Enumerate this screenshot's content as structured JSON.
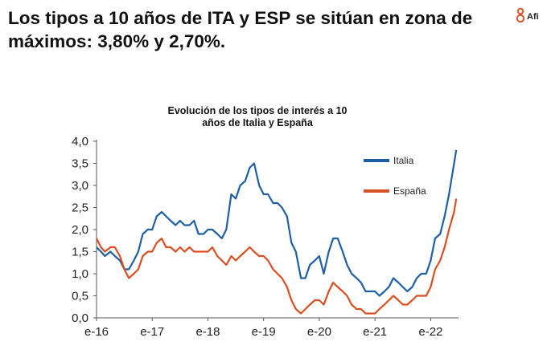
{
  "slide": {
    "title": "Los tipos a 10 años de ITA y ESP se sitúan en zona de máximos: 3,80% y 2,70%.",
    "logo_text": "Afi",
    "logo_color": "#e0542a"
  },
  "chart_data": {
    "type": "line",
    "title": "Evolución de los tipos de interés a 10 años de Italia y España",
    "title_lines": [
      "Evolución de los tipos de interés a 10",
      "años de Italia y España"
    ],
    "xlabel": "",
    "ylabel": "",
    "ylim": [
      0,
      4
    ],
    "yticks": [
      0,
      0.5,
      1,
      1.5,
      2,
      2.5,
      3,
      3.5,
      4
    ],
    "ytick_labels": [
      "0,0",
      "0,5",
      "1,0",
      "1,5",
      "2,0",
      "2,5",
      "3,0",
      "3,5",
      "4,0"
    ],
    "xlim": [
      2016.0,
      2022.5
    ],
    "xticks": [
      2016,
      2017,
      2018,
      2019,
      2020,
      2021,
      2022
    ],
    "xtick_labels": [
      "e-16",
      "e-17",
      "e-18",
      "e-19",
      "e-20",
      "e-21",
      "e-22"
    ],
    "grid": false,
    "legend": "inside top-right",
    "series": [
      {
        "name": "Italia",
        "color": "#1f5fa6",
        "x": [
          2016.0,
          2016.08,
          2016.15,
          2016.25,
          2016.33,
          2016.42,
          2016.5,
          2016.58,
          2016.67,
          2016.75,
          2016.83,
          2016.92,
          2017.0,
          2017.08,
          2017.17,
          2017.25,
          2017.33,
          2017.42,
          2017.5,
          2017.58,
          2017.67,
          2017.75,
          2017.83,
          2017.92,
          2018.0,
          2018.08,
          2018.17,
          2018.25,
          2018.33,
          2018.42,
          2018.5,
          2018.58,
          2018.67,
          2018.75,
          2018.83,
          2018.92,
          2019.0,
          2019.08,
          2019.17,
          2019.25,
          2019.33,
          2019.42,
          2019.5,
          2019.58,
          2019.67,
          2019.75,
          2019.83,
          2019.92,
          2020.0,
          2020.08,
          2020.17,
          2020.25,
          2020.33,
          2020.42,
          2020.5,
          2020.58,
          2020.67,
          2020.75,
          2020.83,
          2020.92,
          2021.0,
          2021.08,
          2021.17,
          2021.25,
          2021.33,
          2021.42,
          2021.5,
          2021.58,
          2021.67,
          2021.75,
          2021.83,
          2021.92,
          2022.0,
          2022.08,
          2022.17,
          2022.25,
          2022.33,
          2022.42,
          2022.46
        ],
        "values": [
          1.6,
          1.5,
          1.4,
          1.5,
          1.4,
          1.3,
          1.1,
          1.1,
          1.3,
          1.5,
          1.9,
          2.0,
          2.0,
          2.3,
          2.4,
          2.3,
          2.2,
          2.1,
          2.2,
          2.1,
          2.1,
          2.2,
          1.9,
          1.9,
          2.0,
          2.0,
          1.9,
          1.8,
          2.0,
          2.8,
          2.7,
          3.0,
          3.1,
          3.4,
          3.5,
          3.0,
          2.8,
          2.8,
          2.6,
          2.6,
          2.5,
          2.3,
          1.7,
          1.5,
          0.9,
          0.9,
          1.2,
          1.3,
          1.4,
          1.0,
          1.5,
          1.8,
          1.8,
          1.5,
          1.2,
          1.0,
          0.9,
          0.8,
          0.6,
          0.6,
          0.6,
          0.5,
          0.6,
          0.7,
          0.9,
          0.8,
          0.7,
          0.6,
          0.7,
          0.9,
          1.0,
          1.0,
          1.3,
          1.8,
          1.9,
          2.3,
          2.8,
          3.5,
          3.8
        ]
      },
      {
        "name": "España",
        "color": "#d94f23",
        "x": [
          2016.0,
          2016.08,
          2016.15,
          2016.25,
          2016.33,
          2016.42,
          2016.5,
          2016.58,
          2016.67,
          2016.75,
          2016.83,
          2016.92,
          2017.0,
          2017.08,
          2017.17,
          2017.25,
          2017.33,
          2017.42,
          2017.5,
          2017.58,
          2017.67,
          2017.75,
          2017.83,
          2017.92,
          2018.0,
          2018.08,
          2018.17,
          2018.25,
          2018.33,
          2018.42,
          2018.5,
          2018.58,
          2018.67,
          2018.75,
          2018.83,
          2018.92,
          2019.0,
          2019.08,
          2019.17,
          2019.25,
          2019.33,
          2019.42,
          2019.5,
          2019.58,
          2019.67,
          2019.75,
          2019.83,
          2019.92,
          2020.0,
          2020.08,
          2020.17,
          2020.25,
          2020.33,
          2020.42,
          2020.5,
          2020.58,
          2020.67,
          2020.75,
          2020.83,
          2020.92,
          2021.0,
          2021.08,
          2021.17,
          2021.25,
          2021.33,
          2021.42,
          2021.5,
          2021.58,
          2021.67,
          2021.75,
          2021.83,
          2021.92,
          2022.0,
          2022.08,
          2022.17,
          2022.25,
          2022.33,
          2022.42,
          2022.46
        ],
        "values": [
          1.8,
          1.6,
          1.5,
          1.6,
          1.6,
          1.4,
          1.1,
          0.9,
          1.0,
          1.1,
          1.4,
          1.5,
          1.5,
          1.7,
          1.8,
          1.6,
          1.6,
          1.5,
          1.6,
          1.5,
          1.6,
          1.5,
          1.5,
          1.5,
          1.5,
          1.6,
          1.4,
          1.3,
          1.2,
          1.4,
          1.3,
          1.4,
          1.5,
          1.6,
          1.5,
          1.4,
          1.4,
          1.3,
          1.1,
          1.0,
          0.9,
          0.7,
          0.4,
          0.2,
          0.1,
          0.2,
          0.3,
          0.4,
          0.4,
          0.3,
          0.6,
          0.8,
          0.7,
          0.6,
          0.5,
          0.3,
          0.2,
          0.2,
          0.1,
          0.1,
          0.1,
          0.2,
          0.3,
          0.4,
          0.5,
          0.4,
          0.3,
          0.3,
          0.4,
          0.5,
          0.5,
          0.5,
          0.7,
          1.1,
          1.3,
          1.6,
          2.0,
          2.4,
          2.7
        ]
      }
    ]
  }
}
